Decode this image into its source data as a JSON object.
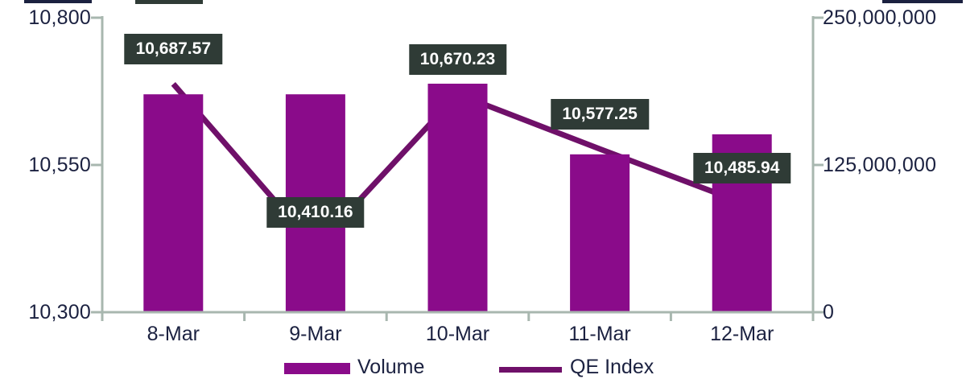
{
  "chart_data": {
    "type": "combo",
    "categories": [
      "8-Mar",
      "9-Mar",
      "10-Mar",
      "11-Mar",
      "12-Mar"
    ],
    "series": [
      {
        "name": "Volume",
        "type": "bar",
        "axis": "right",
        "values": [
          185000000,
          185000000,
          194000000,
          134000000,
          151000000
        ]
      },
      {
        "name": "QE Index",
        "type": "line",
        "axis": "left",
        "values": [
          10687.57,
          10410.16,
          10670.23,
          10577.25,
          10485.94
        ],
        "data_labels": [
          "10,687.57",
          "10,410.16",
          "10,670.23",
          "10,577.25",
          "10,485.94"
        ]
      }
    ],
    "axes": {
      "left": {
        "min": 10300,
        "max": 10800,
        "ticks": [
          {
            "value": 10800,
            "label": "10,800"
          },
          {
            "value": 10550,
            "label": "10,550"
          },
          {
            "value": 10300,
            "label": "10,300"
          }
        ]
      },
      "right": {
        "min": 0,
        "max": 250000000,
        "ticks": [
          {
            "value": 250000000,
            "label": "250,000,000"
          },
          {
            "value": 125000000,
            "label": "125,000,000"
          },
          {
            "value": 0,
            "label": "0"
          }
        ]
      }
    },
    "legend": {
      "position": "bottom",
      "entries": [
        "Volume",
        "QE Index"
      ]
    },
    "grid": false,
    "title": "",
    "xlabel": "",
    "ylabel_left": "",
    "ylabel_right": ""
  },
  "colors": {
    "bar": "#8A0B8A",
    "line": "#6F1069",
    "label_box_bg": "#2F3B36",
    "label_box_text": "#FFFFFF",
    "axis_line": "#A8B7AF",
    "axis_text": "#1B2140",
    "background": "#FFFFFF"
  }
}
